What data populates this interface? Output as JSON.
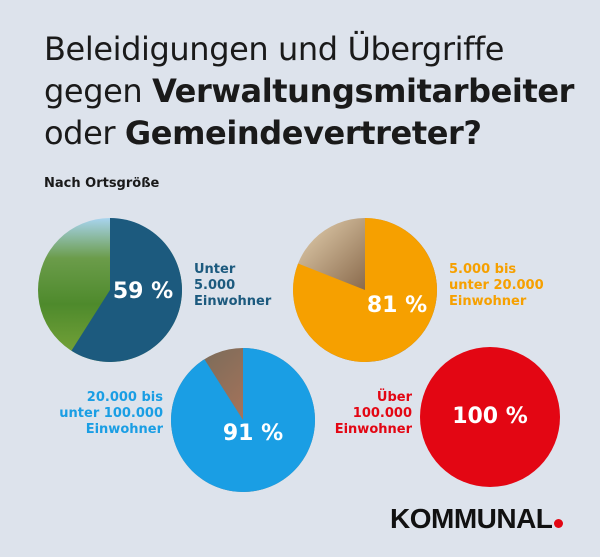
{
  "title": {
    "line1": "Beleidigungen und Übergriffe",
    "line2_light": "gegen ",
    "line2_bold": "Verwaltungsmitarbeiter",
    "line3_light": "oder ",
    "line3_bold": "Gemeindevertreter?"
  },
  "subtitle": "Nach Ortsgröße",
  "chart_data": {
    "type": "pie",
    "title": "Beleidigungen und Übergriffe gegen Verwaltungsmitarbeiter oder Gemeindevertreter?",
    "subtitle": "Nach Ortsgröße",
    "unit": "%",
    "series": [
      {
        "category": [
          "Unter",
          "5.000",
          "Einwohner"
        ],
        "value": 59,
        "value_label": "59 %",
        "color": "#1c5a7e",
        "remainder_fill": "village-photo"
      },
      {
        "category": [
          "5.000 bis",
          "unter 20.000",
          "Einwohner"
        ],
        "value": 81,
        "value_label": "81 %",
        "color": "#f6a000",
        "remainder_fill": "town-houses-photo"
      },
      {
        "category": [
          "20.000 bis",
          "unter 100.000",
          "Einwohner"
        ],
        "value": 91,
        "value_label": "91 %",
        "color": "#1a9ee4",
        "remainder_fill": "city-aerial-photo"
      },
      {
        "category": [
          "Über",
          "100.000",
          "Einwohner"
        ],
        "value": 100,
        "value_label": "100 %",
        "color": "#e30613",
        "remainder_fill": "none"
      }
    ]
  },
  "logo": {
    "text": "KOMMUNAL",
    "dot_color": "#e30613"
  }
}
